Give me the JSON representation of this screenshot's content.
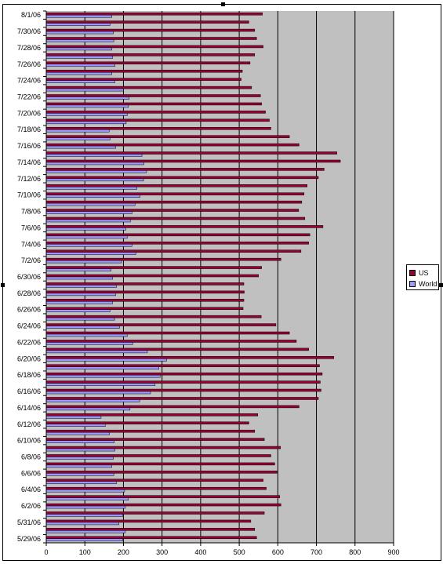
{
  "chart_data": {
    "type": "bar",
    "orientation": "horizontal",
    "categories": [
      "5/29/06",
      "5/30/06",
      "5/31/06",
      "6/1/06",
      "6/2/06",
      "6/3/06",
      "6/4/06",
      "6/5/06",
      "6/6/06",
      "6/7/06",
      "6/8/06",
      "6/9/06",
      "6/10/06",
      "6/11/06",
      "6/12/06",
      "6/13/06",
      "6/14/06",
      "6/15/06",
      "6/16/06",
      "6/17/06",
      "6/18/06",
      "6/19/06",
      "6/20/06",
      "6/21/06",
      "6/22/06",
      "6/23/06",
      "6/24/06",
      "6/25/06",
      "6/26/06",
      "6/27/06",
      "6/28/06",
      "6/29/06",
      "6/30/06",
      "7/1/06",
      "7/2/06",
      "7/3/06",
      "7/4/06",
      "7/5/06",
      "7/6/06",
      "7/7/06",
      "7/8/06",
      "7/9/06",
      "7/10/06",
      "7/11/06",
      "7/12/06",
      "7/13/06",
      "7/14/06",
      "7/15/06",
      "7/16/06",
      "7/17/06",
      "7/18/06",
      "7/19/06",
      "7/20/06",
      "7/21/06",
      "7/22/06",
      "7/23/06",
      "7/24/06",
      "7/25/06",
      "7/26/06",
      "7/27/06",
      "7/28/06",
      "7/29/06",
      "7/30/06",
      "7/31/06",
      "8/1/06"
    ],
    "category_tick_labels": [
      "5/29/06",
      "5/31/06",
      "6/2/06",
      "6/4/06",
      "6/6/06",
      "6/8/06",
      "6/10/06",
      "6/12/06",
      "6/14/06",
      "6/16/06",
      "6/18/06",
      "6/20/06",
      "6/22/06",
      "6/24/06",
      "6/26/06",
      "6/28/06",
      "6/30/06",
      "7/2/06",
      "7/4/06",
      "7/6/06",
      "7/8/06",
      "7/10/06",
      "7/12/06",
      "7/14/06",
      "7/16/06",
      "7/18/06",
      "7/20/06",
      "7/22/06",
      "7/24/06",
      "7/26/06",
      "7/28/06",
      "7/30/06",
      "8/1/06"
    ],
    "series": [
      {
        "name": "US",
        "color": "#990033",
        "values": [
          545,
          540,
          530,
          565,
          608,
          605,
          570,
          562,
          598,
          592,
          582,
          607,
          565,
          540,
          525,
          548,
          655,
          705,
          712,
          710,
          715,
          708,
          745,
          680,
          648,
          630,
          595,
          557,
          510,
          512,
          513,
          512,
          550,
          558,
          608,
          660,
          680,
          683,
          717,
          670,
          654,
          662,
          668,
          676,
          705,
          720,
          762,
          753,
          655,
          630,
          582,
          578,
          568,
          558,
          555,
          532,
          505,
          508,
          528,
          540,
          562,
          545,
          540,
          525,
          560
        ]
      },
      {
        "name": "World",
        "color": "#9999ff",
        "values": [
          198,
          205,
          188,
          198,
          205,
          213,
          203,
          182,
          175,
          170,
          174,
          178,
          176,
          164,
          153,
          142,
          217,
          242,
          270,
          282,
          295,
          292,
          312,
          262,
          224,
          210,
          190,
          177,
          165,
          172,
          180,
          182,
          172,
          168,
          195,
          232,
          222,
          210,
          206,
          218,
          222,
          230,
          243,
          235,
          252,
          260,
          253,
          248,
          180,
          165,
          163,
          207,
          210,
          213,
          215,
          200,
          178,
          170,
          178,
          172,
          170,
          175,
          174,
          165,
          170
        ]
      }
    ],
    "xticks": [
      "0",
      "100",
      "200",
      "300",
      "400",
      "500",
      "600",
      "700",
      "800",
      "900"
    ],
    "xlim": [
      0,
      900
    ],
    "title": "",
    "xlabel": "",
    "ylabel": "",
    "legend": {
      "position": "right",
      "entries": [
        "US",
        "World"
      ]
    },
    "grid": "vertical",
    "plot_background": "#c0c0c0"
  }
}
